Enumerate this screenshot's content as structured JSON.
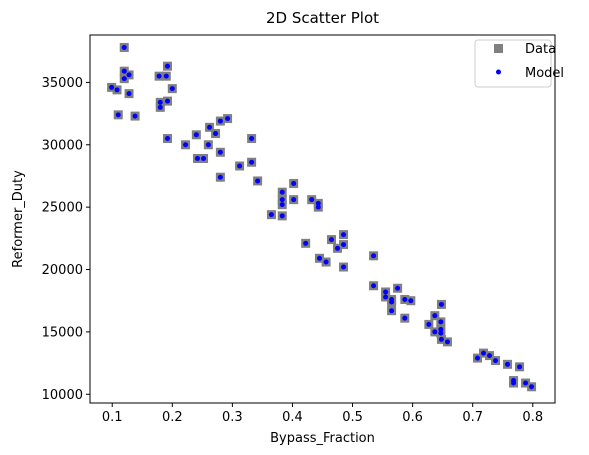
{
  "chart_data": {
    "type": "scatter",
    "title": "2D Scatter Plot",
    "xlabel": "Bypass_Fraction",
    "ylabel": "Reformer_Duty",
    "xlim": [
      0.063,
      0.837
    ],
    "ylim": [
      9300,
      38800
    ],
    "xticks": [
      0.1,
      0.2,
      0.3,
      0.4,
      0.5,
      0.6,
      0.7,
      0.8
    ],
    "xtick_labels": [
      "0.1",
      "0.2",
      "0.3",
      "0.4",
      "0.5",
      "0.6",
      "0.7",
      "0.8"
    ],
    "yticks": [
      10000,
      15000,
      20000,
      25000,
      30000,
      35000
    ],
    "ytick_labels": [
      "10000",
      "15000",
      "20000",
      "25000",
      "30000",
      "35000"
    ],
    "grid": false,
    "legend_position": "top-right",
    "series": [
      {
        "name": "Data",
        "marker": "square",
        "color": "#808080",
        "points": [
          [
            0.099,
            34600
          ],
          [
            0.108,
            34400
          ],
          [
            0.11,
            32400
          ],
          [
            0.12,
            37800
          ],
          [
            0.12,
            35900
          ],
          [
            0.12,
            35300
          ],
          [
            0.128,
            35600
          ],
          [
            0.128,
            34100
          ],
          [
            0.138,
            32300
          ],
          [
            0.178,
            35500
          ],
          [
            0.18,
            33400
          ],
          [
            0.18,
            33000
          ],
          [
            0.19,
            35500
          ],
          [
            0.192,
            36300
          ],
          [
            0.192,
            33500
          ],
          [
            0.192,
            30500
          ],
          [
            0.2,
            34500
          ],
          [
            0.222,
            30000
          ],
          [
            0.24,
            30800
          ],
          [
            0.242,
            28900
          ],
          [
            0.252,
            28900
          ],
          [
            0.26,
            30000
          ],
          [
            0.262,
            31400
          ],
          [
            0.272,
            30900
          ],
          [
            0.28,
            31900
          ],
          [
            0.28,
            29400
          ],
          [
            0.28,
            27400
          ],
          [
            0.292,
            32100
          ],
          [
            0.312,
            28300
          ],
          [
            0.332,
            30500
          ],
          [
            0.332,
            28600
          ],
          [
            0.342,
            27100
          ],
          [
            0.365,
            24400
          ],
          [
            0.383,
            26200
          ],
          [
            0.383,
            25600
          ],
          [
            0.383,
            25200
          ],
          [
            0.383,
            24300
          ],
          [
            0.402,
            26900
          ],
          [
            0.402,
            25600
          ],
          [
            0.422,
            22100
          ],
          [
            0.432,
            25600
          ],
          [
            0.443,
            25300
          ],
          [
            0.443,
            25000
          ],
          [
            0.445,
            20900
          ],
          [
            0.456,
            20600
          ],
          [
            0.465,
            22400
          ],
          [
            0.475,
            21700
          ],
          [
            0.485,
            22800
          ],
          [
            0.485,
            22000
          ],
          [
            0.485,
            20200
          ],
          [
            0.535,
            21100
          ],
          [
            0.535,
            18700
          ],
          [
            0.555,
            18200
          ],
          [
            0.555,
            17800
          ],
          [
            0.565,
            17600
          ],
          [
            0.565,
            17400
          ],
          [
            0.565,
            16700
          ],
          [
            0.575,
            18500
          ],
          [
            0.587,
            17600
          ],
          [
            0.587,
            16100
          ],
          [
            0.597,
            17500
          ],
          [
            0.627,
            15600
          ],
          [
            0.637,
            16300
          ],
          [
            0.637,
            15000
          ],
          [
            0.647,
            15800
          ],
          [
            0.647,
            15200
          ],
          [
            0.647,
            14900
          ],
          [
            0.648,
            17200
          ],
          [
            0.648,
            14400
          ],
          [
            0.658,
            14200
          ],
          [
            0.708,
            12900
          ],
          [
            0.718,
            13300
          ],
          [
            0.728,
            13100
          ],
          [
            0.738,
            12700
          ],
          [
            0.758,
            12400
          ],
          [
            0.768,
            11100
          ],
          [
            0.768,
            10900
          ],
          [
            0.778,
            12200
          ],
          [
            0.788,
            10900
          ],
          [
            0.798,
            10600
          ]
        ]
      },
      {
        "name": "Model",
        "marker": "circle",
        "color": "#0000ff",
        "points": [
          [
            0.099,
            34600
          ],
          [
            0.108,
            34400
          ],
          [
            0.11,
            32400
          ],
          [
            0.12,
            37800
          ],
          [
            0.12,
            35900
          ],
          [
            0.12,
            35300
          ],
          [
            0.128,
            35600
          ],
          [
            0.128,
            34100
          ],
          [
            0.138,
            32300
          ],
          [
            0.178,
            35500
          ],
          [
            0.18,
            33400
          ],
          [
            0.18,
            33000
          ],
          [
            0.19,
            35500
          ],
          [
            0.192,
            36300
          ],
          [
            0.192,
            33500
          ],
          [
            0.192,
            30500
          ],
          [
            0.2,
            34500
          ],
          [
            0.222,
            30000
          ],
          [
            0.24,
            30800
          ],
          [
            0.242,
            28900
          ],
          [
            0.252,
            28900
          ],
          [
            0.26,
            30000
          ],
          [
            0.262,
            31400
          ],
          [
            0.272,
            30900
          ],
          [
            0.28,
            31900
          ],
          [
            0.28,
            29400
          ],
          [
            0.28,
            27400
          ],
          [
            0.292,
            32100
          ],
          [
            0.312,
            28300
          ],
          [
            0.332,
            30500
          ],
          [
            0.332,
            28600
          ],
          [
            0.342,
            27100
          ],
          [
            0.365,
            24400
          ],
          [
            0.383,
            26200
          ],
          [
            0.383,
            25600
          ],
          [
            0.383,
            25200
          ],
          [
            0.383,
            24300
          ],
          [
            0.402,
            26900
          ],
          [
            0.402,
            25600
          ],
          [
            0.422,
            22100
          ],
          [
            0.432,
            25600
          ],
          [
            0.443,
            25300
          ],
          [
            0.443,
            25000
          ],
          [
            0.445,
            20900
          ],
          [
            0.456,
            20600
          ],
          [
            0.465,
            22400
          ],
          [
            0.475,
            21700
          ],
          [
            0.485,
            22800
          ],
          [
            0.485,
            22000
          ],
          [
            0.485,
            20200
          ],
          [
            0.535,
            21100
          ],
          [
            0.535,
            18700
          ],
          [
            0.555,
            18200
          ],
          [
            0.555,
            17800
          ],
          [
            0.565,
            17600
          ],
          [
            0.565,
            17400
          ],
          [
            0.565,
            16700
          ],
          [
            0.575,
            18500
          ],
          [
            0.587,
            17600
          ],
          [
            0.587,
            16100
          ],
          [
            0.597,
            17500
          ],
          [
            0.627,
            15600
          ],
          [
            0.637,
            16300
          ],
          [
            0.637,
            15000
          ],
          [
            0.647,
            15800
          ],
          [
            0.647,
            15200
          ],
          [
            0.647,
            14900
          ],
          [
            0.648,
            17200
          ],
          [
            0.648,
            14400
          ],
          [
            0.658,
            14200
          ],
          [
            0.708,
            12900
          ],
          [
            0.718,
            13300
          ],
          [
            0.728,
            13100
          ],
          [
            0.738,
            12700
          ],
          [
            0.758,
            12400
          ],
          [
            0.768,
            11100
          ],
          [
            0.768,
            10900
          ],
          [
            0.778,
            12200
          ],
          [
            0.788,
            10900
          ],
          [
            0.798,
            10600
          ]
        ]
      }
    ]
  }
}
